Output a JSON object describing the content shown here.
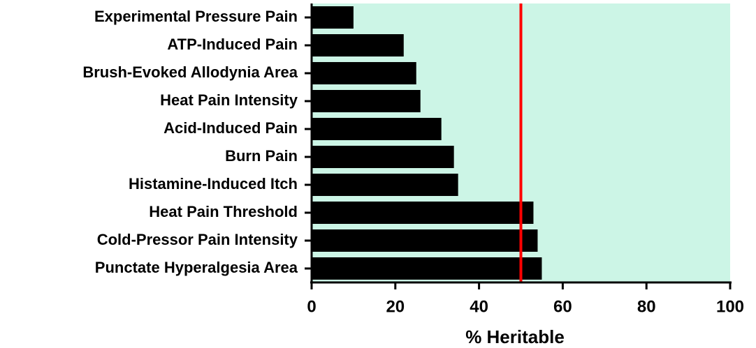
{
  "chart_data": {
    "type": "bar",
    "orientation": "horizontal",
    "x_label": "% Heritable",
    "categories": [
      "Experimental Pressure Pain",
      "ATP-Induced Pain",
      "Brush-Evoked Allodynia Area",
      "Heat Pain Intensity",
      "Acid-Induced Pain",
      "Burn Pain",
      "Histamine-Induced Itch",
      "Heat Pain Threshold",
      "Cold-Pressor Pain Intensity",
      "Punctate Hyperalgesia Area"
    ],
    "values": [
      10,
      22,
      25,
      26,
      31,
      34,
      35,
      53,
      54,
      55
    ],
    "color": "#000000",
    "background": "#ccf5e6",
    "reference_line": {
      "value": 50,
      "color": "#ff0000"
    },
    "xlim": [
      0,
      100
    ],
    "xticks": [
      0,
      20,
      40,
      60,
      80,
      100
    ]
  }
}
